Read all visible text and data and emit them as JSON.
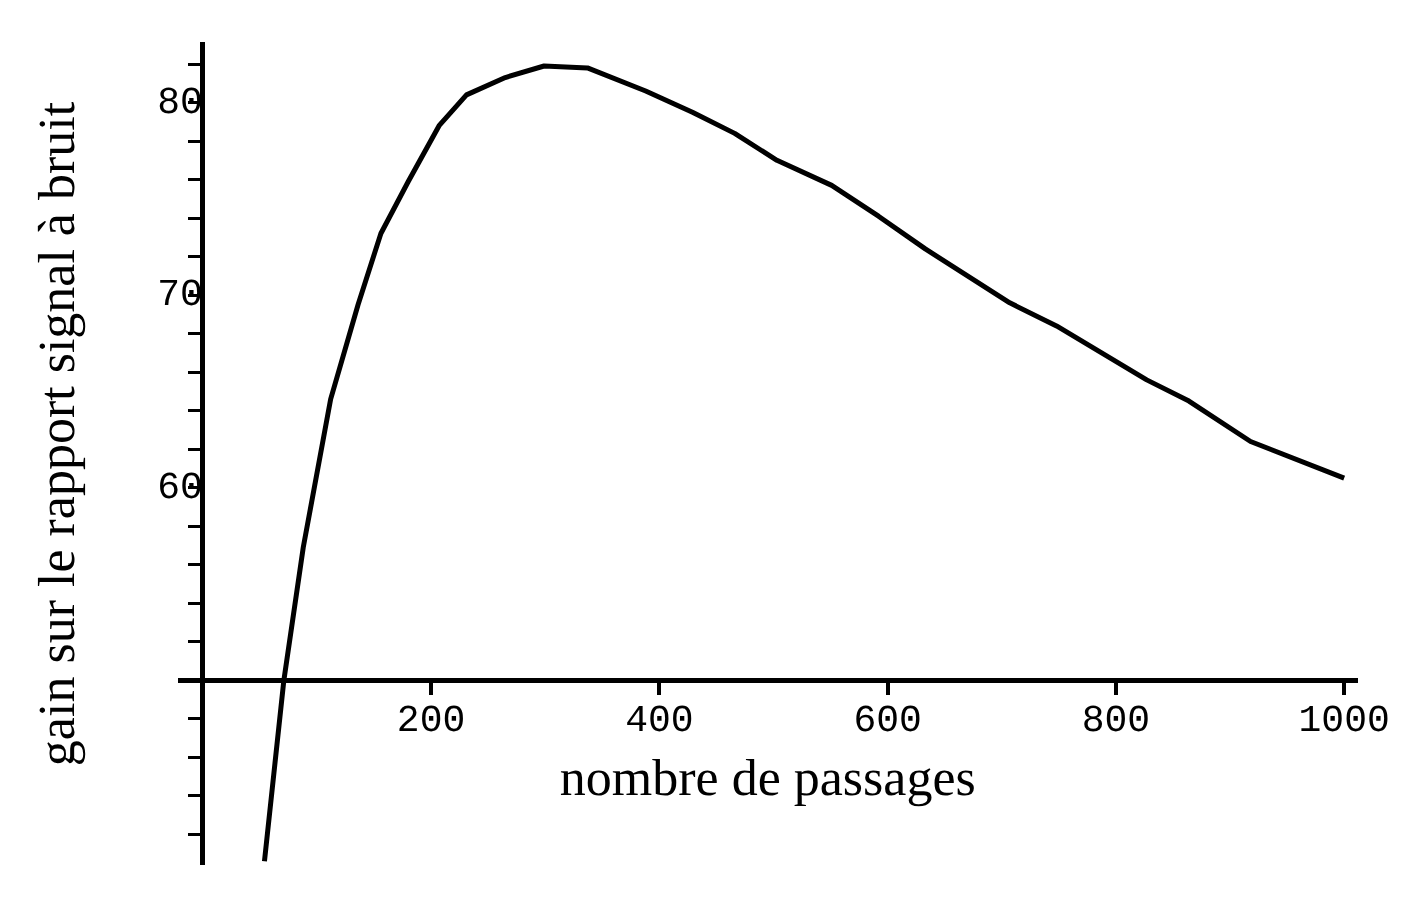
{
  "chart_data": {
    "type": "line",
    "xlabel": "nombre de passages",
    "ylabel": "gain sur le rapport signal à bruit",
    "x": [
      54,
      71,
      88,
      112,
      136,
      156,
      180,
      207,
      231,
      265,
      299,
      337,
      388,
      429,
      466,
      503,
      551,
      592,
      633,
      707,
      748,
      827,
      864,
      918,
      1000
    ],
    "series": [
      {
        "color": "#000000",
        "values": [
          40.6,
          50,
          56.9,
          64.6,
          69.5,
          73.2,
          75.9,
          78.8,
          80.4,
          81.3,
          81.9,
          81.8,
          80.6,
          79.5,
          78.4,
          77.0,
          75.7,
          74.1,
          72.4,
          69.6,
          68.4,
          65.6,
          64.5,
          62.4,
          60.5
        ]
      }
    ],
    "xlim": [
      -20,
      1010
    ],
    "ylim": [
      40.5,
      83
    ],
    "xticks": [
      200,
      400,
      600,
      800,
      1000
    ],
    "yticks": [
      {
        "value": 42,
        "label": null
      },
      {
        "value": 44,
        "label": null
      },
      {
        "value": 46,
        "label": null
      },
      {
        "value": 48,
        "label": null
      },
      {
        "value": 52,
        "label": null
      },
      {
        "value": 54,
        "label": null
      },
      {
        "value": 56,
        "label": null
      },
      {
        "value": 58,
        "label": null
      },
      60,
      {
        "value": 62,
        "label": null
      },
      {
        "value": 64,
        "label": null
      },
      {
        "value": 66,
        "label": null
      },
      {
        "value": 68,
        "label": null
      },
      70,
      {
        "value": 72,
        "label": null
      },
      {
        "value": 74,
        "label": null
      },
      {
        "value": 76,
        "label": null
      },
      {
        "value": 78,
        "label": null
      },
      80,
      {
        "value": 82,
        "label": null
      }
    ],
    "grid": false,
    "legend": false,
    "marker": "none",
    "line_style": "solid"
  }
}
